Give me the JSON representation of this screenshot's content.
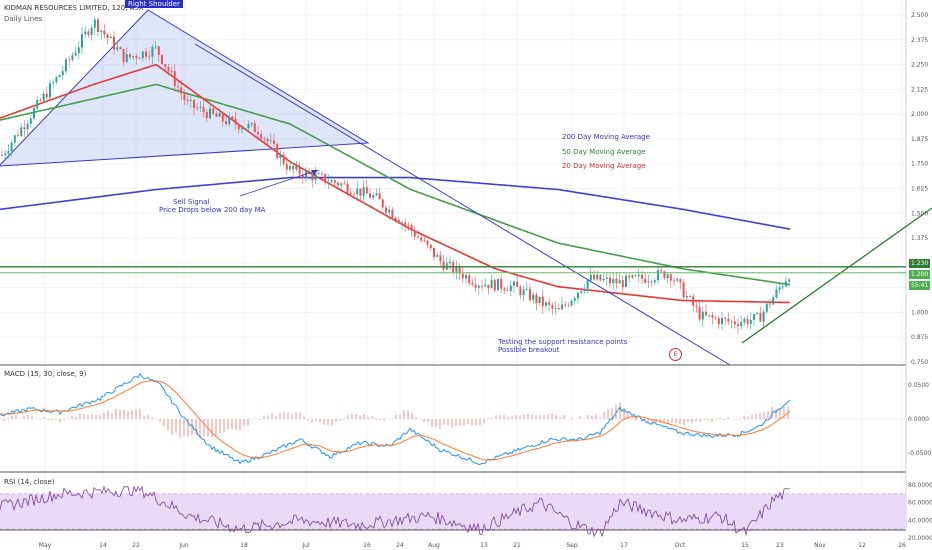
{
  "header": {
    "title": "KIDMAN RESOURCES LIMITED, 120, ASX",
    "subtitle": "Daily Lines"
  },
  "annotations": {
    "right_shoulder": "Right Shoulder",
    "ma200": "200 Day Moving Average",
    "ma50": "50 Day Moving Average",
    "ma20": "20 Day Moving Average",
    "sell_signal_line1": "Sell Signal",
    "sell_signal_line2": "Price Drops below 200 day MA",
    "testing_line1": "Testing the support resistance points",
    "testing_line2": "Possible breakout",
    "event_marker": "E"
  },
  "price_tags": {
    "resistance": "1.230",
    "last_close": "1.200",
    "countdown": "55:41"
  },
  "panels": {
    "macd_label": "MACD (15, 30, close, 9)",
    "rsi_label": "RSI (14, close)"
  },
  "colors": {
    "candle_up": "#26a69a",
    "candle_down": "#ef5350",
    "ma20": "#e53935",
    "ma50": "#43a047",
    "ma200": "#3f3fd8",
    "trendline": "#3a3ac8",
    "support_line": "#2e7d32",
    "macd_line": "#2196f3",
    "signal_line": "#ff7a2f",
    "histogram": "#e57373",
    "rsi_line": "#7b3f9b",
    "rsi_band": "#ead9f7",
    "annotation_blue": "#3535c0",
    "annotation_green": "#2e7d32",
    "annotation_red": "#d32f2f",
    "price_tag_green": "#2e7d32"
  },
  "chart_data": [
    {
      "type": "candlestick",
      "title": "KIDMAN RESOURCES LIMITED, 120, ASX",
      "x_tick_labels": [
        "May",
        "14",
        "22",
        "Jun",
        "18",
        "Jul",
        "16",
        "24",
        "Aug",
        "13",
        "21",
        "Sep",
        "17",
        "Oct",
        "15",
        "23",
        "Nov",
        "12",
        "26"
      ],
      "y_tick_labels": [
        "2.500",
        "2.375",
        "2.250",
        "2.125",
        "2.000",
        "1.875",
        "1.750",
        "1.625",
        "1.500",
        "1.375",
        "1.250",
        "1.125",
        "1.000",
        "0.875",
        "0.750"
      ],
      "ylim": [
        0.75,
        2.5
      ],
      "date_range": [
        "2018-05-01",
        "2018-10-25"
      ],
      "close_approx": [
        {
          "x": "2018-05-01",
          "y": 1.78
        },
        {
          "x": "2018-05-08",
          "y": 2.0
        },
        {
          "x": "2018-05-15",
          "y": 2.22
        },
        {
          "x": "2018-05-22",
          "y": 2.47
        },
        {
          "x": "2018-05-29",
          "y": 2.28
        },
        {
          "x": "2018-06-05",
          "y": 2.33
        },
        {
          "x": "2018-06-12",
          "y": 2.05
        },
        {
          "x": "2018-06-20",
          "y": 1.97
        },
        {
          "x": "2018-06-28",
          "y": 1.92
        },
        {
          "x": "2018-07-05",
          "y": 1.72
        },
        {
          "x": "2018-07-16",
          "y": 1.65
        },
        {
          "x": "2018-07-24",
          "y": 1.58
        },
        {
          "x": "2018-08-01",
          "y": 1.42
        },
        {
          "x": "2018-08-08",
          "y": 1.25
        },
        {
          "x": "2018-08-16",
          "y": 1.15
        },
        {
          "x": "2018-08-24",
          "y": 1.13
        },
        {
          "x": "2018-09-03",
          "y": 1.0
        },
        {
          "x": "2018-09-10",
          "y": 1.17
        },
        {
          "x": "2018-09-17",
          "y": 1.15
        },
        {
          "x": "2018-09-28",
          "y": 1.2
        },
        {
          "x": "2018-10-05",
          "y": 0.98
        },
        {
          "x": "2018-10-12",
          "y": 0.95
        },
        {
          "x": "2018-10-18",
          "y": 0.97
        },
        {
          "x": "2018-10-25",
          "y": 1.2
        }
      ],
      "series": [
        {
          "name": "200 Day Moving Average",
          "values": [
            {
              "x": "2018-05-01",
              "y": 1.52
            },
            {
              "x": "2018-06-05",
              "y": 1.62
            },
            {
              "x": "2018-07-05",
              "y": 1.68
            },
            {
              "x": "2018-08-01",
              "y": 1.68
            },
            {
              "x": "2018-09-03",
              "y": 1.62
            },
            {
              "x": "2018-10-01",
              "y": 1.52
            },
            {
              "x": "2018-10-25",
              "y": 1.42
            }
          ]
        },
        {
          "name": "50 Day Moving Average",
          "values": [
            {
              "x": "2018-05-01",
              "y": 1.97
            },
            {
              "x": "2018-06-05",
              "y": 2.15
            },
            {
              "x": "2018-07-05",
              "y": 1.95
            },
            {
              "x": "2018-08-01",
              "y": 1.62
            },
            {
              "x": "2018-09-03",
              "y": 1.35
            },
            {
              "x": "2018-10-01",
              "y": 1.22
            },
            {
              "x": "2018-10-25",
              "y": 1.14
            }
          ]
        },
        {
          "name": "20 Day Moving Average",
          "values": [
            {
              "x": "2018-05-01",
              "y": 1.98
            },
            {
              "x": "2018-05-22",
              "y": 2.15
            },
            {
              "x": "2018-06-05",
              "y": 2.25
            },
            {
              "x": "2018-07-05",
              "y": 1.76
            },
            {
              "x": "2018-08-01",
              "y": 1.42
            },
            {
              "x": "2018-08-20",
              "y": 1.22
            },
            {
              "x": "2018-09-03",
              "y": 1.13
            },
            {
              "x": "2018-10-01",
              "y": 1.06
            },
            {
              "x": "2018-10-25",
              "y": 1.05
            }
          ]
        }
      ],
      "horizontal_lines": [
        1.23,
        1.2
      ]
    },
    {
      "type": "line",
      "title": "MACD (15, 30, close, 9)",
      "y_tick_labels": [
        "0.0500",
        "0.0000",
        "-0.0500"
      ],
      "ylim": [
        -0.08,
        0.08
      ]
    },
    {
      "type": "line",
      "title": "RSI (14, close)",
      "y_tick_labels": [
        "80.0000",
        "60.0000",
        "40.0000",
        "20.0000"
      ],
      "ylim": [
        20,
        80
      ],
      "band": [
        30,
        70
      ]
    }
  ]
}
